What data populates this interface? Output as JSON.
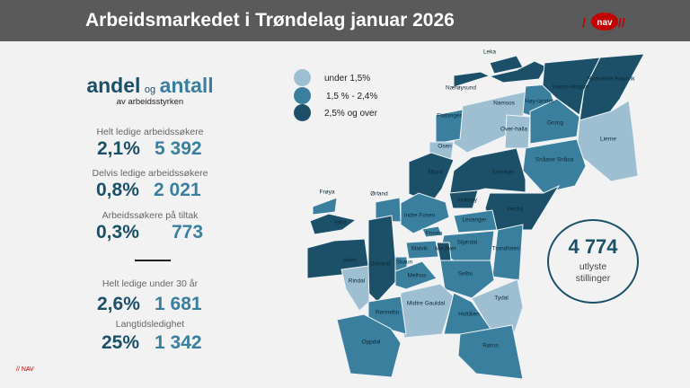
{
  "header": {
    "title": "Arbeidsmarkedet i Trøndelag januar 2026",
    "logo": "NAV"
  },
  "stats": {
    "heading_a": "andel",
    "heading_og": "og",
    "heading_b": "antall",
    "subheading": "av arbeidsstyrken",
    "items": [
      {
        "label": "Helt ledige arbeidssøkere",
        "pct": "2,1%",
        "count": "5 392"
      },
      {
        "label": "Delvis ledige arbeidssøkere",
        "pct": "0,8%",
        "count": "2 021"
      },
      {
        "label": "Arbeidssøkere på tiltak",
        "pct": "0,3%",
        "count": "773"
      },
      {
        "label": "Helt ledige under 30 år",
        "pct": "2,6%",
        "count": "1 681"
      },
      {
        "label": "Langtidsledighet",
        "pct": "25%",
        "count": "1 342"
      }
    ]
  },
  "legend": [
    {
      "label": "under 1,5%",
      "color": "#9dbfd1"
    },
    {
      "label": "1,5 % - 2,4%",
      "color": "#3a7f9e"
    },
    {
      "label": "2,5% og over",
      "color": "#1b5068"
    }
  ],
  "vacancies": {
    "count": "4 774",
    "line1": "utlyste",
    "line2": "stillinger"
  },
  "footer": "// NAV",
  "municipalities": [
    {
      "name": "Leka",
      "level": 2
    },
    {
      "name": "Nærøysund",
      "level": 2
    },
    {
      "name": "Namsos",
      "level": 0
    },
    {
      "name": "Høy-landet",
      "level": 1
    },
    {
      "name": "Nams-skogan",
      "level": 2
    },
    {
      "name": "Raarvihke Røyrvik",
      "level": 2
    },
    {
      "name": "Grong",
      "level": 1
    },
    {
      "name": "Flatanger",
      "level": 1
    },
    {
      "name": "Over-halla",
      "level": 0
    },
    {
      "name": "Lierne",
      "level": 0
    },
    {
      "name": "Osen",
      "level": 0
    },
    {
      "name": "Snåase Snåsa",
      "level": 1
    },
    {
      "name": "Åfjord",
      "level": 2
    },
    {
      "name": "Steinkjer",
      "level": 2
    },
    {
      "name": "Frøya",
      "level": 1
    },
    {
      "name": "Ørland",
      "level": 1
    },
    {
      "name": "Inderøy",
      "level": 2
    },
    {
      "name": "Verdal",
      "level": 2
    },
    {
      "name": "Indre Fosen",
      "level": 1
    },
    {
      "name": "Levanger",
      "level": 1
    },
    {
      "name": "Hitra",
      "level": 2
    },
    {
      "name": "Frosta",
      "level": 1
    },
    {
      "name": "Stjørdal",
      "level": 1
    },
    {
      "name": "Trondheim",
      "level": 1
    },
    {
      "name": "Malvik",
      "level": 1
    },
    {
      "name": "Meråker",
      "level": 2
    },
    {
      "name": "Heim",
      "level": 2
    },
    {
      "name": "Orkland",
      "level": 2
    },
    {
      "name": "Skaun",
      "level": 1
    },
    {
      "name": "Melhus",
      "level": 1
    },
    {
      "name": "Selbu",
      "level": 1
    },
    {
      "name": "Rindal",
      "level": 0
    },
    {
      "name": "Tydal",
      "level": 0
    },
    {
      "name": "Midtre Gauldal",
      "level": 0
    },
    {
      "name": "Rennebu",
      "level": 1
    },
    {
      "name": "Holtålen",
      "level": 1
    },
    {
      "name": "Oppdal",
      "level": 1
    },
    {
      "name": "Røros",
      "level": 1
    }
  ]
}
